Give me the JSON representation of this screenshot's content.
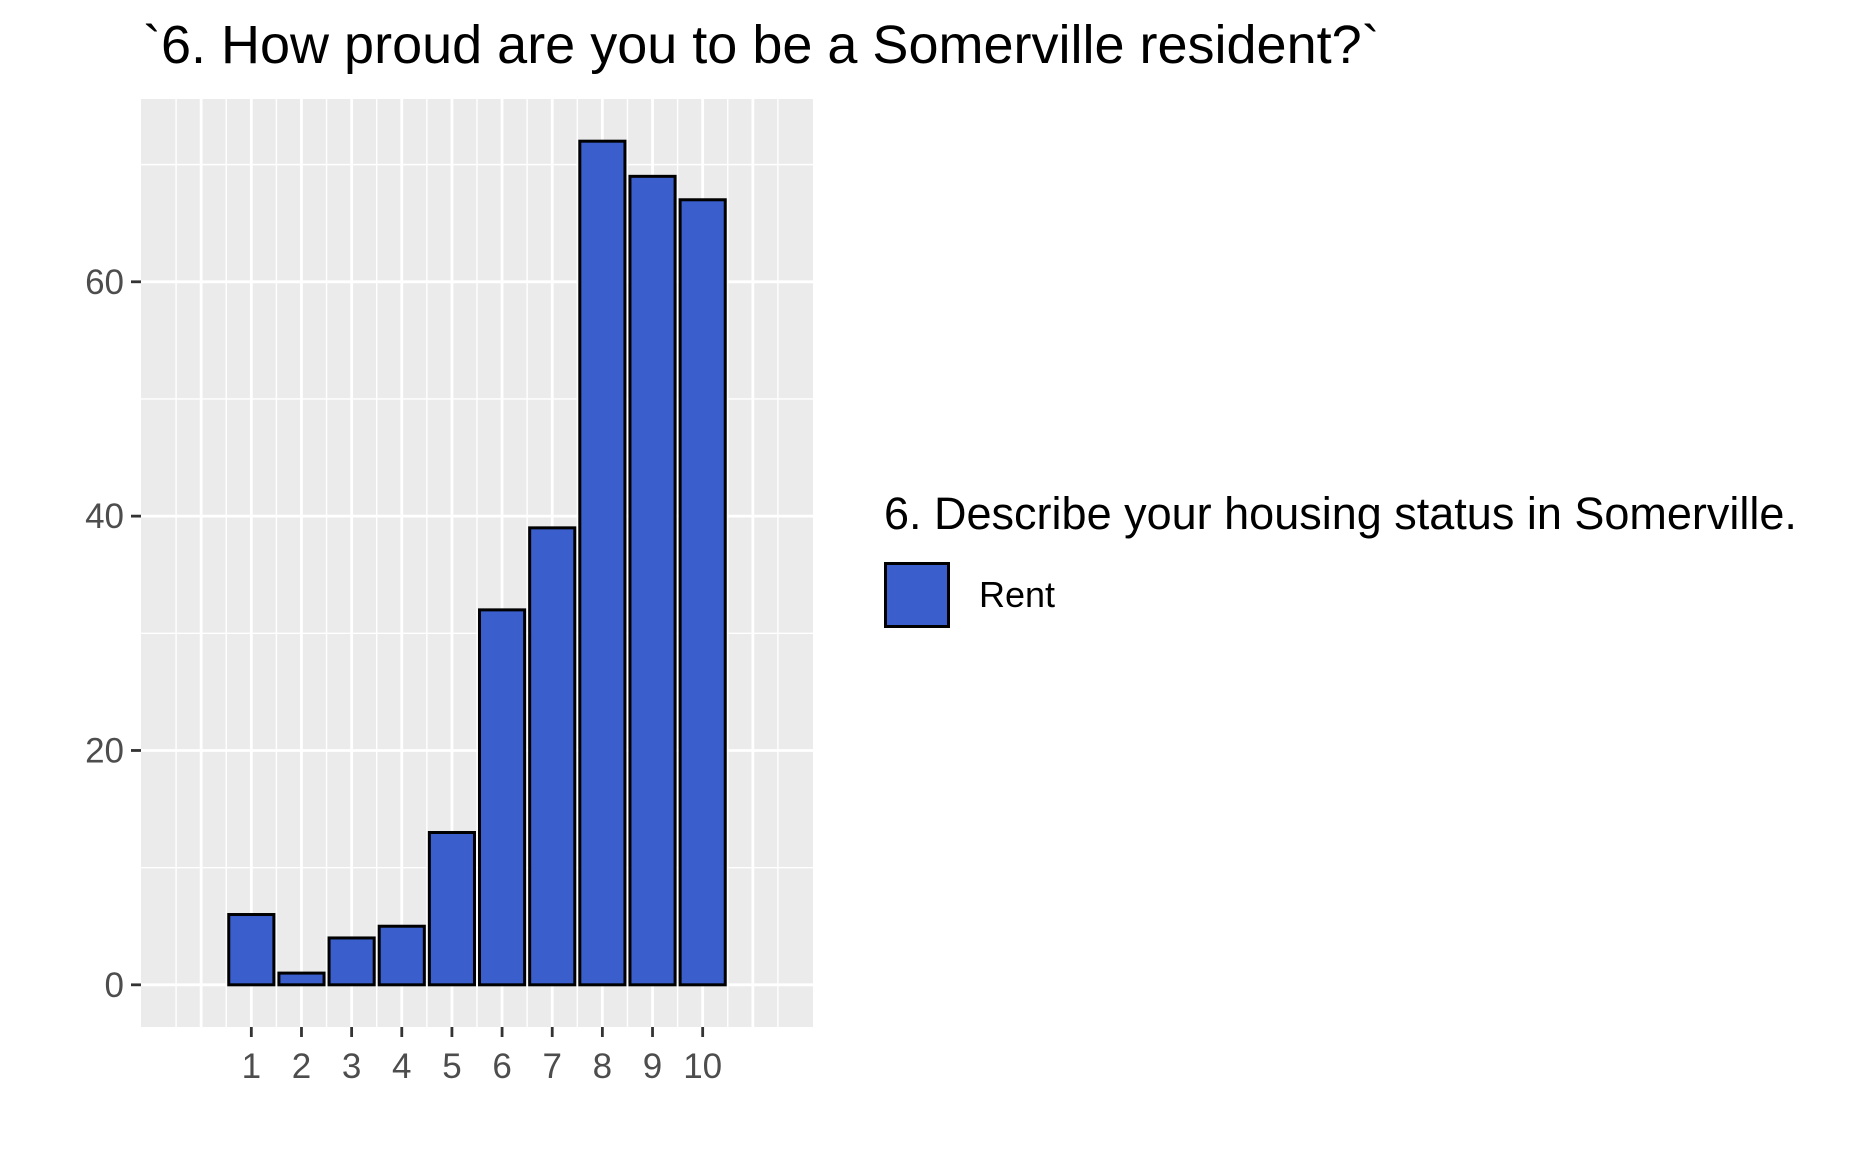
{
  "chart_data": {
    "type": "bar",
    "title": "`6. How proud are you to be a Somerville resident?`",
    "xlabel": "",
    "ylabel": "",
    "categories": [
      "1",
      "2",
      "3",
      "4",
      "5",
      "6",
      "7",
      "8",
      "9",
      "10"
    ],
    "series": [
      {
        "name": "Rent",
        "values": [
          6,
          1,
          4,
          5,
          13,
          32,
          39,
          72,
          69,
          67
        ]
      }
    ],
    "y_ticks": [
      0,
      20,
      40,
      60
    ],
    "y_tick_labels": [
      "0",
      "20",
      "40",
      "60"
    ],
    "ylim": [
      -3.6,
      75.6
    ],
    "xlim": [
      -1.2,
      12.2
    ],
    "grid": true,
    "legend": {
      "title": "6. Describe your housing status in Somerville.",
      "position": "right"
    },
    "colors": {
      "bar_fill": "#3a5ecc",
      "bar_border": "#000000",
      "panel_bg": "#ebebeb",
      "grid": "#ffffff",
      "tick_text": "#4d4d4d"
    }
  }
}
